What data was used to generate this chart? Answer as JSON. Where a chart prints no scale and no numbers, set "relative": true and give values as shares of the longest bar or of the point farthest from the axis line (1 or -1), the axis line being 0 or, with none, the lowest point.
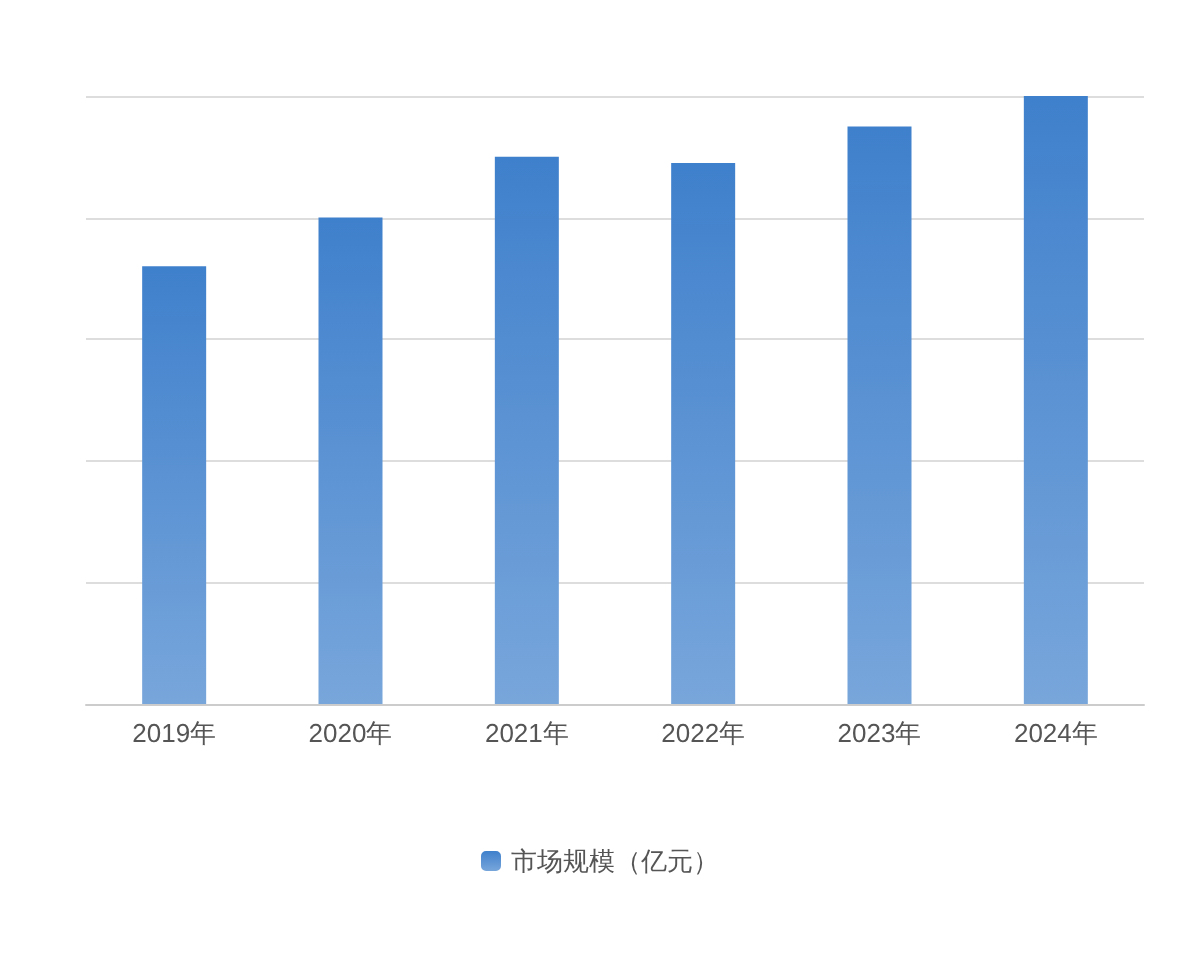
{
  "chart_data": {
    "type": "bar",
    "relative": true,
    "categories": [
      "2019年",
      "2020年",
      "2021年",
      "2022年",
      "2023年",
      "2024年"
    ],
    "series": [
      {
        "name": "市场规模（亿元）",
        "color": "#3f80cc",
        "values": [
          0.72,
          0.8,
          0.9,
          0.89,
          0.95,
          1
        ]
      }
    ],
    "grid": "y",
    "legend": "bottom"
  }
}
